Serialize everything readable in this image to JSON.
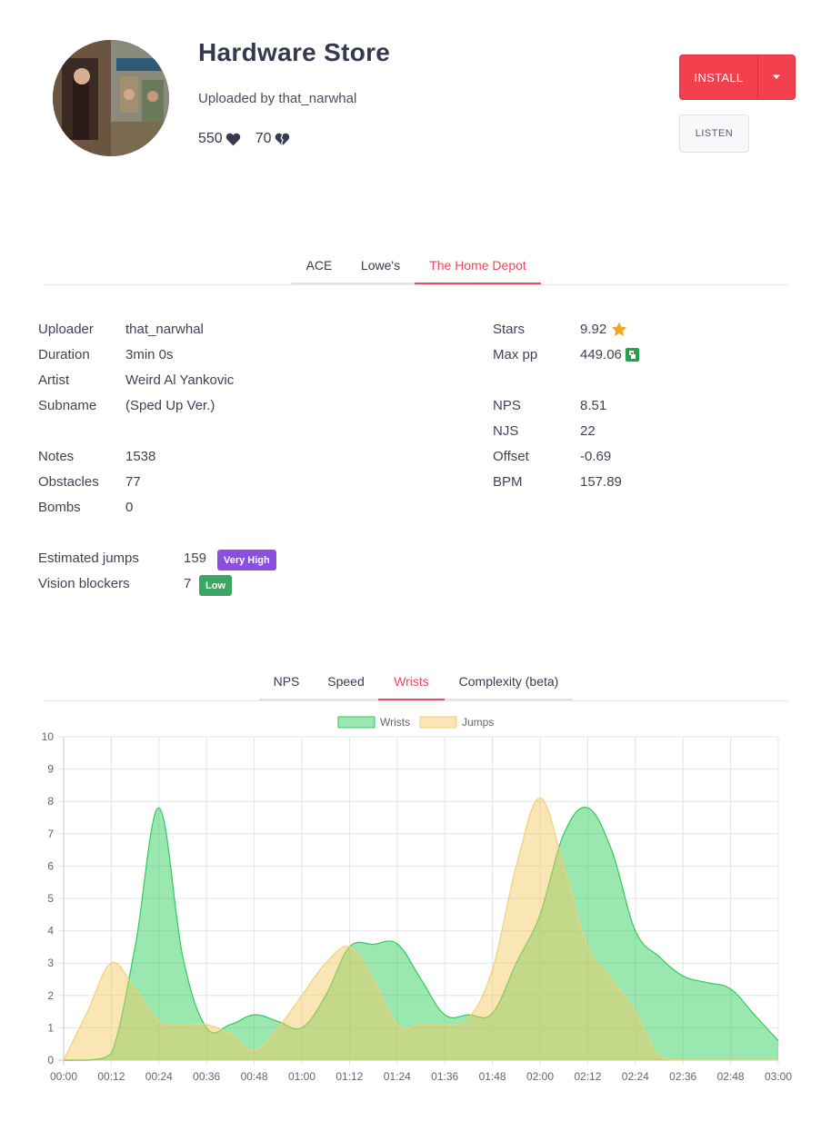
{
  "header": {
    "title": "Hardware Store",
    "uploaded_by": "Uploaded by that_narwhal",
    "upvotes": "550",
    "downvotes": "70",
    "install_label": "INSTALL",
    "listen_label": "LISTEN"
  },
  "difficulty_tabs": [
    "ACE",
    "Lowe's",
    "The Home Depot"
  ],
  "details_left": [
    {
      "label": "Uploader",
      "value": "that_narwhal"
    },
    {
      "label": "Duration",
      "value": "3min 0s"
    },
    {
      "label": "Artist",
      "value": "Weird Al Yankovic"
    },
    {
      "label": "Subname",
      "value": "(Sped Up Ver.)"
    },
    {
      "label": "Notes",
      "value": "1538"
    },
    {
      "label": "Obstacles",
      "value": "77"
    },
    {
      "label": "Bombs",
      "value": "0"
    }
  ],
  "details_right": [
    {
      "label": "Stars",
      "value": "9.92"
    },
    {
      "label": "Max pp",
      "value": "449.06"
    },
    {
      "label": "NPS",
      "value": "8.51"
    },
    {
      "label": "NJS",
      "value": "22"
    },
    {
      "label": "Offset",
      "value": "-0.69"
    },
    {
      "label": "BPM",
      "value": "157.89"
    }
  ],
  "metrics": [
    {
      "label": "Estimated jumps",
      "value": "159",
      "badge": "Very High"
    },
    {
      "label": "Vision blockers",
      "value": "7",
      "badge": "Low"
    }
  ],
  "chart_tabs": [
    "NPS",
    "Speed",
    "Wrists",
    "Complexity (beta)"
  ],
  "colors": {
    "accent": "#e84a5f",
    "wrists": "#2ecc5a",
    "jumps": "#f5d27a"
  },
  "chart_data": {
    "type": "area",
    "x": [
      "00:00",
      "00:06",
      "00:12",
      "00:18",
      "00:24",
      "00:30",
      "00:36",
      "00:42",
      "00:48",
      "00:54",
      "01:00",
      "01:06",
      "01:12",
      "01:18",
      "01:24",
      "01:30",
      "01:36",
      "01:42",
      "01:48",
      "01:54",
      "02:00",
      "02:06",
      "02:12",
      "02:18",
      "02:24",
      "02:30",
      "02:36",
      "02:42",
      "02:48",
      "02:54",
      "03:00"
    ],
    "x_tick_labels": [
      "00:00",
      "00:12",
      "00:24",
      "00:36",
      "00:48",
      "01:00",
      "01:12",
      "01:24",
      "01:36",
      "01:48",
      "02:00",
      "02:12",
      "02:24",
      "02:36",
      "02:48",
      "03:00"
    ],
    "series": [
      {
        "name": "Wrists",
        "values": [
          0,
          0,
          0.2,
          3.5,
          7.8,
          3.2,
          1.0,
          1.1,
          1.4,
          1.2,
          1.0,
          2.0,
          3.5,
          3.58,
          3.6,
          2.5,
          1.4,
          1.4,
          1.45,
          3.0,
          4.5,
          7.0,
          7.8,
          6.5,
          4.0,
          3.2,
          2.6,
          2.4,
          2.2,
          1.4,
          0.6
        ]
      },
      {
        "name": "Jumps",
        "values": [
          0,
          1.5,
          3.0,
          2.2,
          1.2,
          1.1,
          1.1,
          0.8,
          0.3,
          1.0,
          2.0,
          3.0,
          3.5,
          2.5,
          1.1,
          1.1,
          1.1,
          1.3,
          2.8,
          6.0,
          8.1,
          6.0,
          3.5,
          2.5,
          1.5,
          0.1,
          0,
          0,
          0,
          0,
          0
        ]
      }
    ],
    "ylim": [
      0,
      10
    ],
    "y_ticks": [
      0,
      1,
      2,
      3,
      4,
      5,
      6,
      7,
      8,
      9,
      10
    ],
    "grid": true,
    "legend": "top-center"
  }
}
